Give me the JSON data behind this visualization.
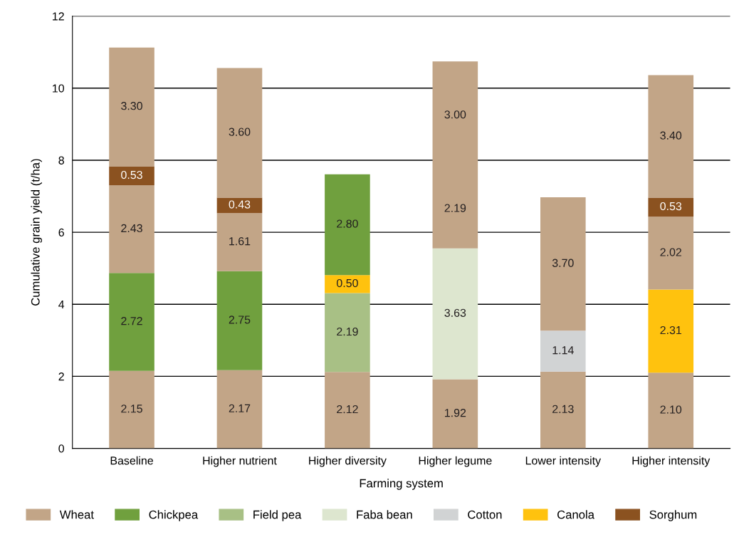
{
  "chart_data": {
    "type": "bar",
    "stacked": true,
    "xlabel": "Farming system",
    "ylabel": "Cumulative grain yield (t/ha)",
    "categories": [
      "Baseline",
      "Higher nutrient",
      "Higher diversity",
      "Higher legume",
      "Lower intensity",
      "Higher intensity"
    ],
    "series": [
      {
        "name": "Wheat",
        "color": "#c2a587",
        "values": [
          2.15,
          2.17,
          2.12,
          1.92,
          2.13,
          2.1
        ],
        "value_labels": [
          "2.15",
          "2.17",
          "2.12",
          "1.92",
          "2.13",
          "2.10"
        ]
      },
      {
        "name": "Chickpea",
        "color": "#70a03e",
        "values": [
          2.72,
          2.75,
          null,
          null,
          null,
          null
        ],
        "value_labels": [
          "2.72",
          "2.75",
          null,
          null,
          null,
          null
        ]
      },
      {
        "name": "Field pea",
        "color": "#a8c085",
        "values": [
          null,
          null,
          2.19,
          null,
          null,
          null
        ],
        "value_labels": [
          null,
          null,
          "2.19",
          null,
          null,
          null
        ]
      },
      {
        "name": "Faba bean",
        "color": "#dde6cf",
        "values": [
          null,
          null,
          null,
          3.63,
          null,
          null
        ],
        "value_labels": [
          null,
          null,
          null,
          "3.63",
          null,
          null
        ]
      },
      {
        "name": "Cotton",
        "color": "#d1d3d4",
        "values": [
          null,
          null,
          null,
          null,
          1.14,
          null
        ],
        "value_labels": [
          null,
          null,
          null,
          null,
          "1.14",
          null
        ]
      },
      {
        "name": "Canola",
        "color": "#ffc20e",
        "values": [
          null,
          null,
          0.5,
          null,
          null,
          2.31
        ],
        "value_labels": [
          null,
          null,
          "0.50",
          null,
          null,
          "2.31"
        ]
      },
      {
        "color": "#70a03e",
        "values": [
          null,
          null,
          2.8,
          null,
          null,
          null
        ],
        "value_labels": [
          null,
          null,
          "2.80",
          null,
          null,
          null
        ]
      },
      {
        "color": "#c2a587",
        "values": [
          2.43,
          1.61,
          null,
          2.19,
          3.7,
          2.02
        ],
        "value_labels": [
          "2.43",
          "1.61",
          null,
          "2.19",
          "3.70",
          "2.02"
        ]
      },
      {
        "name": "Sorghum",
        "color": "#8b5220",
        "values": [
          0.53,
          0.43,
          null,
          null,
          null,
          0.53
        ],
        "value_labels": [
          "0.53",
          "0.43",
          null,
          null,
          null,
          "0.53"
        ]
      },
      {
        "color": "#c2a587",
        "values": [
          3.3,
          3.6,
          null,
          3.0,
          null,
          3.4
        ],
        "value_labels": [
          "3.30",
          "3.60",
          null,
          "3.00",
          null,
          "3.40"
        ]
      }
    ],
    "ylim": [
      0,
      12
    ],
    "yticks": [
      0,
      2,
      4,
      6,
      8,
      10,
      12
    ],
    "grid": "y",
    "legend": "bottom"
  }
}
